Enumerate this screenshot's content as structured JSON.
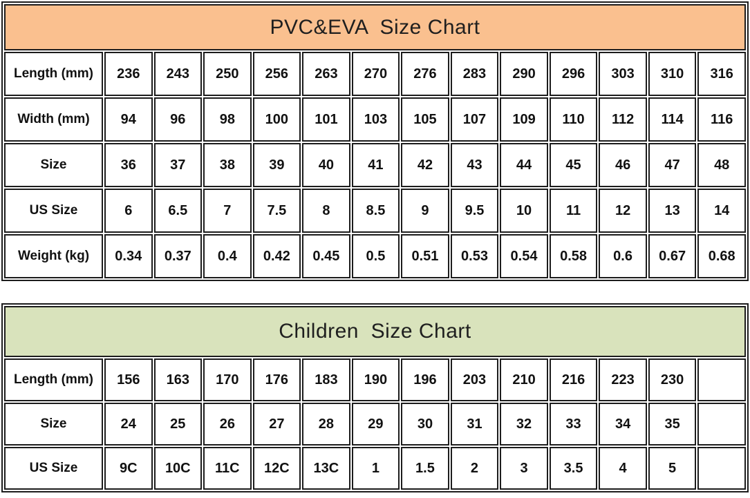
{
  "chart_data": [
    {
      "type": "table",
      "title": "PVC&EVA  Size Chart",
      "header_bg": "#FAC08F",
      "border_color": "#1c1c1c",
      "columns": 13,
      "rows": [
        {
          "label": "Length (mm)",
          "values": [
            "236",
            "243",
            "250",
            "256",
            "263",
            "270",
            "276",
            "283",
            "290",
            "296",
            "303",
            "310",
            "316"
          ]
        },
        {
          "label": "Width (mm)",
          "values": [
            "94",
            "96",
            "98",
            "100",
            "101",
            "103",
            "105",
            "107",
            "109",
            "110",
            "112",
            "114",
            "116"
          ]
        },
        {
          "label": "Size",
          "values": [
            "36",
            "37",
            "38",
            "39",
            "40",
            "41",
            "42",
            "43",
            "44",
            "45",
            "46",
            "47",
            "48"
          ]
        },
        {
          "label": "US Size",
          "values": [
            "6",
            "6.5",
            "7",
            "7.5",
            "8",
            "8.5",
            "9",
            "9.5",
            "10",
            "11",
            "12",
            "13",
            "14"
          ]
        },
        {
          "label": "Weight (kg)",
          "values": [
            "0.34",
            "0.37",
            "0.4",
            "0.42",
            "0.45",
            "0.5",
            "0.51",
            "0.53",
            "0.54",
            "0.58",
            "0.6",
            "0.67",
            "0.68"
          ]
        }
      ]
    },
    {
      "type": "table",
      "title": "Children  Size Chart",
      "header_bg": "#D9E3BC",
      "border_color": "#1c1c1c",
      "columns": 13,
      "rows": [
        {
          "label": "Length (mm)",
          "values": [
            "156",
            "163",
            "170",
            "176",
            "183",
            "190",
            "196",
            "203",
            "210",
            "216",
            "223",
            "230",
            ""
          ]
        },
        {
          "label": "Size",
          "values": [
            "24",
            "25",
            "26",
            "27",
            "28",
            "29",
            "30",
            "31",
            "32",
            "33",
            "34",
            "35",
            ""
          ]
        },
        {
          "label": "US Size",
          "values": [
            "9C",
            "10C",
            "11C",
            "12C",
            "13C",
            "1",
            "1.5",
            "2",
            "3",
            "3.5",
            "4",
            "5",
            ""
          ]
        }
      ]
    }
  ]
}
